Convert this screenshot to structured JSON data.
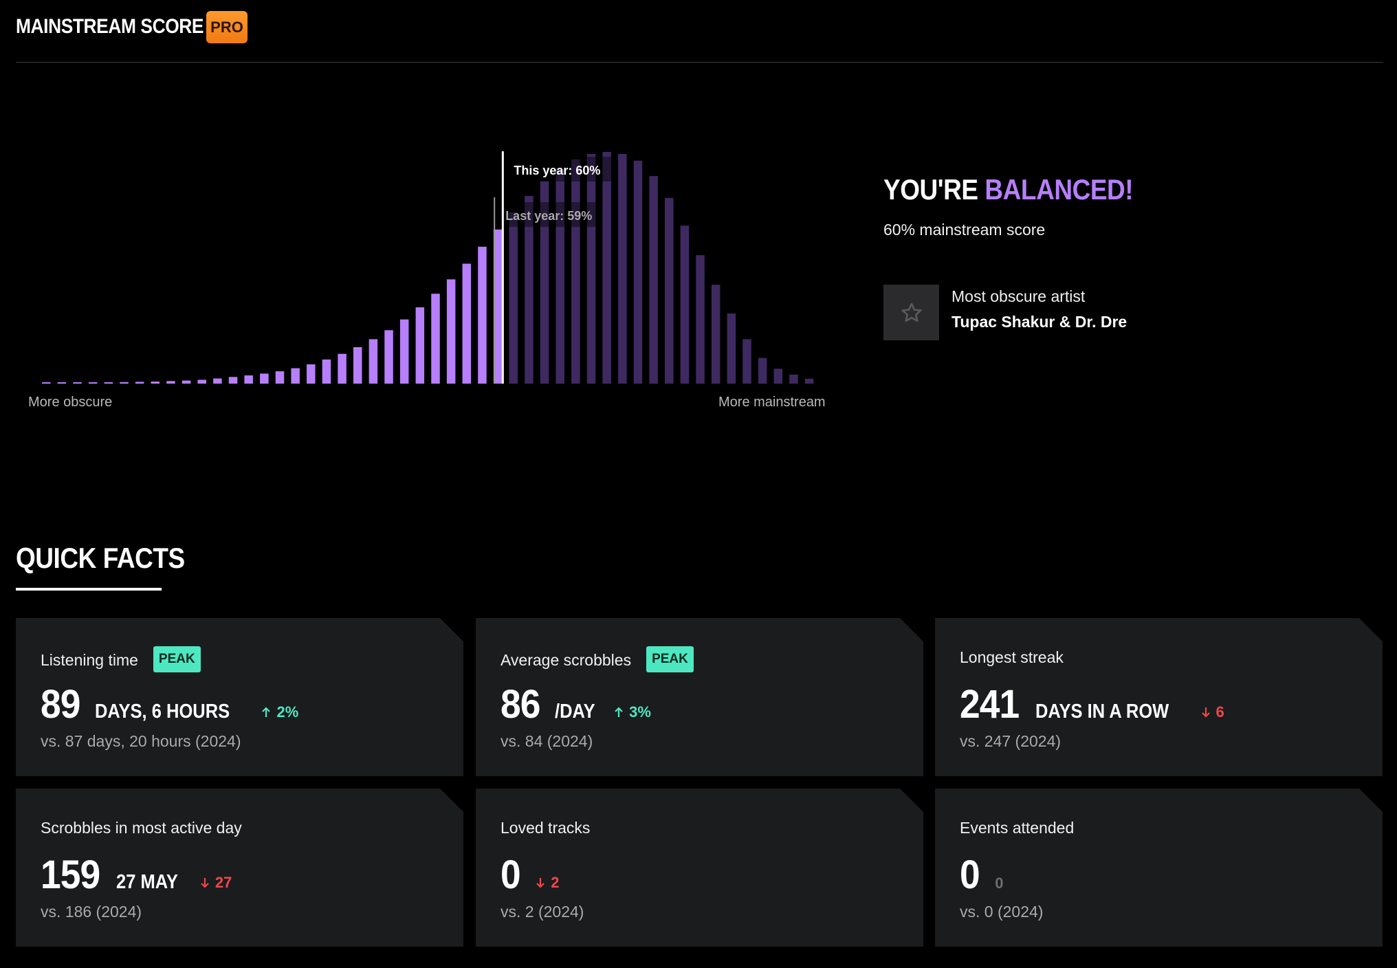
{
  "header": {
    "title": "MAINSTREAM SCORE",
    "badge": "PRO"
  },
  "chart_data": {
    "type": "bar",
    "values": [
      0.5,
      0.5,
      0.5,
      0.5,
      0.5,
      0.6,
      0.7,
      0.8,
      1,
      1.2,
      1.5,
      2,
      2.6,
      3.2,
      3.9,
      4.8,
      6,
      7.5,
      9.4,
      11.6,
      14.2,
      17.3,
      20.8,
      25,
      29.7,
      35,
      40.6,
      46.7,
      53.3,
      60,
      66.7,
      73.1,
      78.8,
      83.5,
      87.3,
      89.4,
      90.2,
      89.4,
      86.8,
      80.8,
      72.3,
      61.5,
      50,
      38.5,
      27.3,
      17.3,
      10,
      5.8,
      3.5,
      1.9
    ],
    "highlight_count": 30,
    "markers": [
      {
        "label": "This year: 60%",
        "value": 60
      },
      {
        "label": "Last year: 59%",
        "value": 59
      }
    ],
    "x_min_label": "More obscure",
    "x_max_label": "More mainstream",
    "colors": {
      "highlight": "#b77ffb",
      "rest": "#3e2a61"
    }
  },
  "summary": {
    "headline_prefix": "YOU'RE",
    "headline_accent": "BALANCED!",
    "score_text": "60% mainstream score",
    "artist_label": "Most obscure artist",
    "artist_name": "Tupac Shakur & Dr. Dre",
    "artist_icon": "star-icon"
  },
  "quick_facts": {
    "title": "QUICK FACTS",
    "cards": [
      {
        "label": "Listening time",
        "badge": "PEAK",
        "value": "89",
        "unit": "DAYS, 6 HOURS",
        "delta": "2%",
        "delta_dir": "up",
        "compare": "vs. 87 days, 20 hours (2024)"
      },
      {
        "label": "Average scrobbles",
        "badge": "PEAK",
        "value": "86",
        "unit": "/DAY",
        "delta": "3%",
        "delta_dir": "up",
        "compare": "vs. 84 (2024)"
      },
      {
        "label": "Longest streak",
        "badge": "",
        "value": "241",
        "unit": "DAYS IN A ROW",
        "delta": "6",
        "delta_dir": "down",
        "compare": "vs. 247 (2024)"
      },
      {
        "label": "Scrobbles in most active day",
        "badge": "",
        "value": "159",
        "unit": "27 MAY",
        "delta": "27",
        "delta_dir": "down",
        "compare": "vs. 186 (2024)"
      },
      {
        "label": "Loved tracks",
        "badge": "",
        "value": "0",
        "unit": "",
        "delta": "2",
        "delta_dir": "down",
        "compare": "vs. 2 (2024)"
      },
      {
        "label": "Events attended",
        "badge": "",
        "value": "0",
        "unit": "",
        "delta": "0",
        "delta_dir": "neutral",
        "compare": "vs. 0 (2024)"
      }
    ],
    "colors": {
      "up": "#4de8c1",
      "down": "#f0474a",
      "neutral": "#6d6e73",
      "card_bg": "#1b1c1e"
    }
  }
}
